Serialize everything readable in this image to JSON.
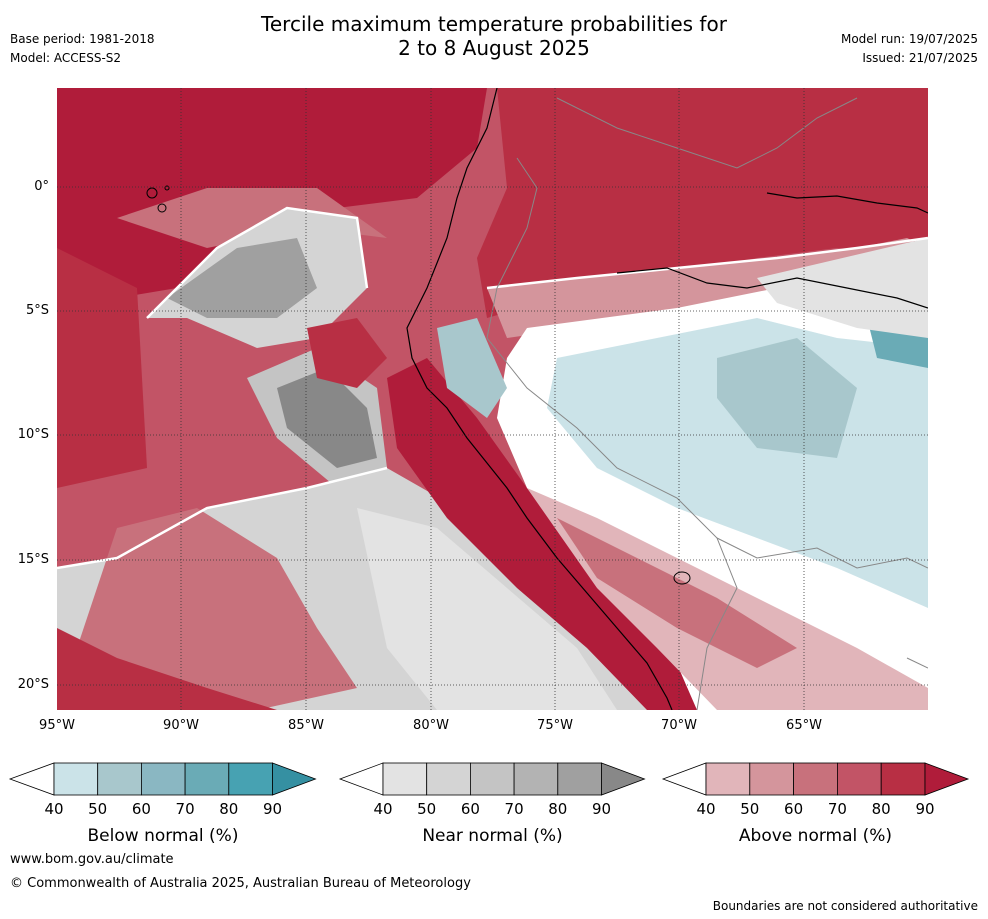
{
  "header": {
    "title_line1": "Tercile maximum temperature probabilities for",
    "title_line2": "2 to 8 August 2025",
    "base_period": "Base period: 1981-2018",
    "model": "Model: ACCESS-S2",
    "model_run": "Model run: 19/07/2025",
    "issued": "Issued: 21/07/2025"
  },
  "map": {
    "lat_labels": [
      "0°",
      "5°S",
      "10°S",
      "15°S",
      "20°S"
    ],
    "lon_labels": [
      "95°W",
      "90°W",
      "85°W",
      "80°W",
      "75°W",
      "70°W",
      "65°W"
    ]
  },
  "colorbars": [
    {
      "title": "Below normal (%)",
      "ticks": [
        "40",
        "50",
        "60",
        "70",
        "80",
        "90"
      ],
      "colors": [
        "#ffffff",
        "#cbe3e8",
        "#a8c7cc",
        "#8ab7c2",
        "#6aabb6",
        "#47a2b2",
        "#3590a2"
      ]
    },
    {
      "title": "Near normal (%)",
      "ticks": [
        "40",
        "50",
        "60",
        "70",
        "80",
        "90"
      ],
      "colors": [
        "#ffffff",
        "#e3e3e3",
        "#d4d4d4",
        "#c4c4c4",
        "#b3b3b3",
        "#a0a0a0",
        "#888888"
      ]
    },
    {
      "title": "Above normal (%)",
      "ticks": [
        "40",
        "50",
        "60",
        "70",
        "80",
        "90"
      ],
      "colors": [
        "#ffffff",
        "#e1b5ba",
        "#d4959c",
        "#c8717c",
        "#c25466",
        "#b82f44",
        "#b01c3a"
      ]
    }
  ],
  "footer": {
    "website": "www.bom.gov.au/climate",
    "copyright": "© Commonwealth of Australia 2025, Australian Bureau of Meteorology",
    "disclaimer": "Boundaries are not considered authoritative"
  }
}
